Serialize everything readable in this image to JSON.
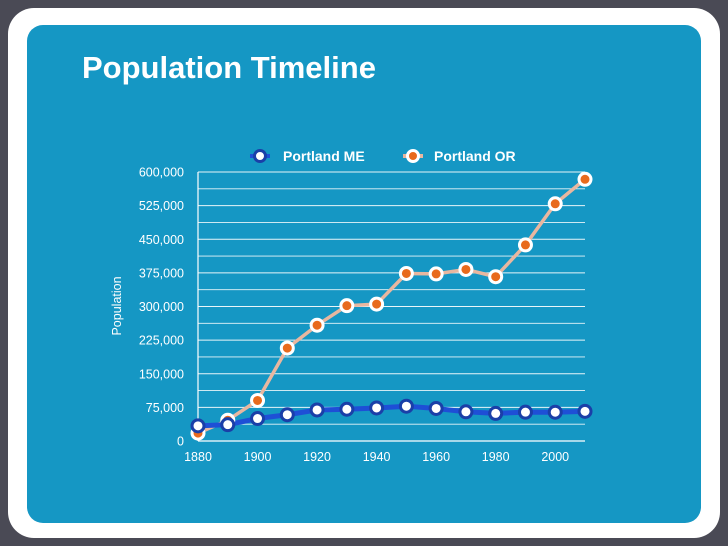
{
  "slide": {
    "title": "Population Timeline"
  },
  "chart_data": {
    "type": "line",
    "title": "Population Timeline",
    "xlabel": "",
    "ylabel": "Population",
    "ylim": [
      0,
      600000
    ],
    "xlim": [
      1880,
      2010
    ],
    "y_ticks": [
      0,
      75000,
      150000,
      225000,
      300000,
      375000,
      450000,
      525000,
      600000
    ],
    "y_tick_labels": [
      "0",
      "75,000",
      "150,000",
      "225,000",
      "300,000",
      "375,000",
      "450,000",
      "525,000",
      "600,000"
    ],
    "x_ticks": [
      1880,
      1900,
      1920,
      1940,
      1960,
      1980,
      2000
    ],
    "x_tick_labels": [
      "1880",
      "1900",
      "1920",
      "1940",
      "1960",
      "1980",
      "2000"
    ],
    "grid": true,
    "legend_position": "top",
    "x": [
      1880,
      1890,
      1900,
      1910,
      1920,
      1930,
      1940,
      1950,
      1960,
      1970,
      1980,
      1990,
      2000,
      2010
    ],
    "series": [
      {
        "name": "Portland ME",
        "line_color": "#1e4fd6",
        "marker_fill": "#ffffff",
        "marker_stroke": "#1a3fa8",
        "values": [
          33810,
          36425,
          50145,
          58571,
          69272,
          70810,
          73643,
          77634,
          72566,
          65116,
          61572,
          64358,
          64249,
          66194
        ]
      },
      {
        "name": "Portland OR",
        "line_color": "#e8b7a0",
        "marker_fill": "#e86a1c",
        "marker_stroke": "#ffffff",
        "values": [
          17577,
          46385,
          90426,
          207214,
          258288,
          301815,
          305394,
          373628,
          372676,
          382619,
          366383,
          437319,
          529121,
          583776
        ]
      }
    ]
  }
}
